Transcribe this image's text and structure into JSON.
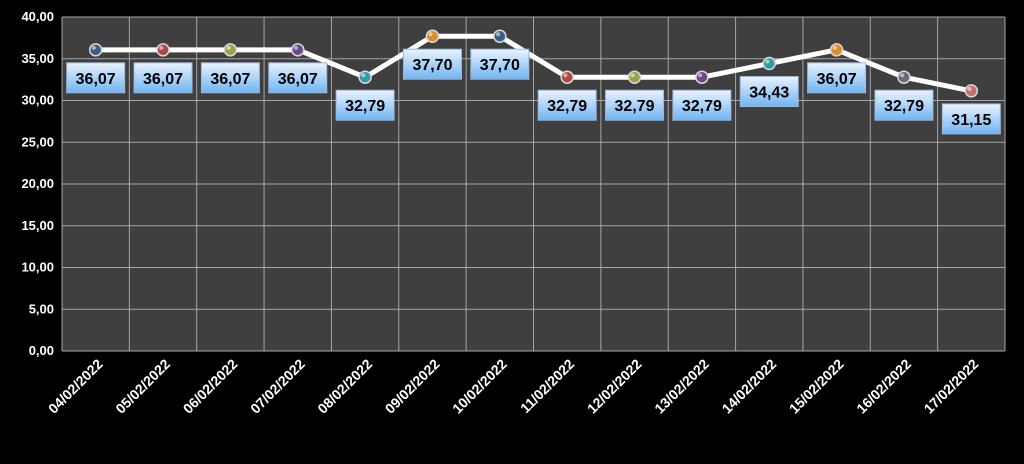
{
  "chart_data": {
    "type": "line",
    "categories": [
      "04/02/2022",
      "05/02/2022",
      "06/02/2022",
      "07/02/2022",
      "08/02/2022",
      "09/02/2022",
      "10/02/2022",
      "11/02/2022",
      "12/02/2022",
      "13/02/2022",
      "14/02/2022",
      "15/02/2022",
      "16/02/2022",
      "17/02/2022"
    ],
    "values": [
      36.07,
      36.07,
      36.07,
      36.07,
      32.79,
      37.7,
      37.7,
      32.79,
      32.79,
      32.79,
      34.43,
      36.07,
      32.79,
      31.15
    ],
    "data_labels": [
      "36,07",
      "36,07",
      "36,07",
      "36,07",
      "32,79",
      "37,70",
      "37,70",
      "32,79",
      "32,79",
      "32,79",
      "34,43",
      "36,07",
      "32,79",
      "31,15"
    ],
    "y_ticks": [
      "0,00",
      "5,00",
      "10,00",
      "15,00",
      "20,00",
      "25,00",
      "30,00",
      "35,00",
      "40,00"
    ],
    "ylim": [
      0,
      40
    ],
    "grid": true,
    "title": "",
    "xlabel": "",
    "ylabel": "",
    "colors": {
      "background": "#000000",
      "plot_area": "#3f3f3f",
      "gridline": "#a6a6a6",
      "line": "#ffffff",
      "label_text": "#000000",
      "label_box_top": "#eaf3ff",
      "label_box_bottom": "#6fb4f2",
      "axis_text": "#ffffff"
    },
    "marker_colors": [
      "#3a5f86",
      "#b04848",
      "#9aa24a",
      "#6c4a8a",
      "#2f9ca8",
      "#e08a2a",
      "#3a5f86",
      "#b04848",
      "#9aa24a",
      "#6c4a8a",
      "#2f9ca8",
      "#e08a2a",
      "#6a6a7a",
      "#c87070"
    ]
  }
}
